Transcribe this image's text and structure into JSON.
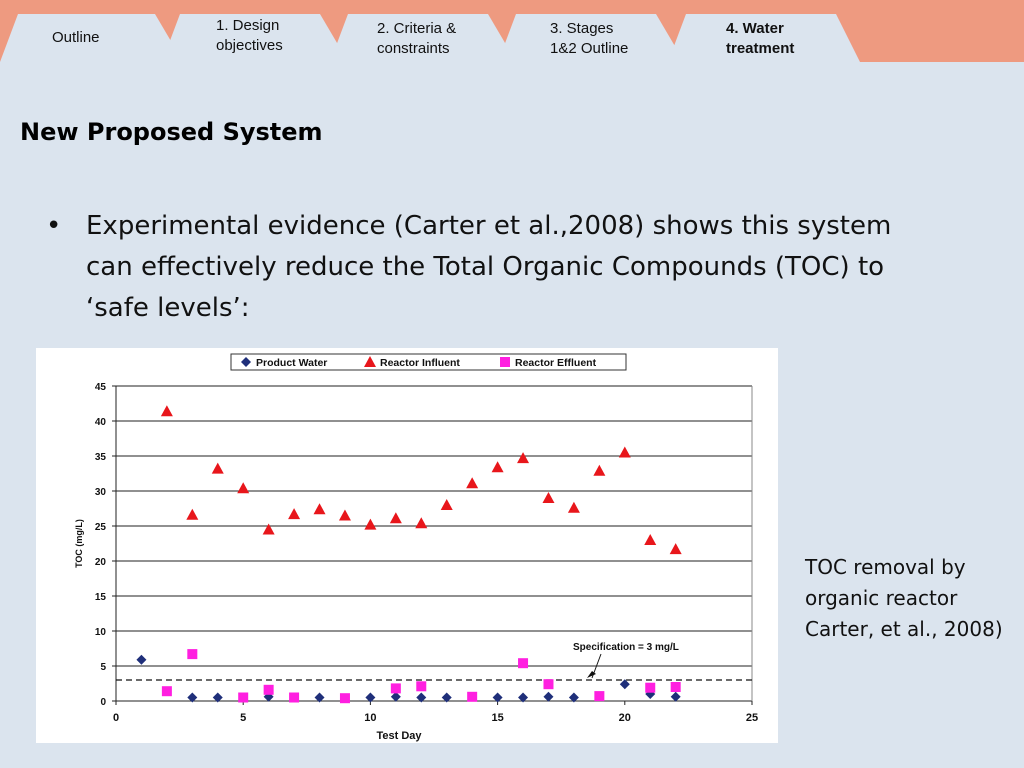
{
  "nav": {
    "tabs": [
      {
        "label": "Outline",
        "active": false
      },
      {
        "label": "1. Design\nobjectives",
        "active": false
      },
      {
        "label": "2. Criteria &\nconstraints",
        "active": false
      },
      {
        "label": "3. Stages\n1&2 Outline",
        "active": false
      },
      {
        "label": "4. Water\ntreatment",
        "active": true
      }
    ],
    "colors": {
      "bar": "#ee9a80",
      "tab": "#dbe4ee"
    }
  },
  "slide": {
    "title": "New Proposed System",
    "bullet": "Experimental evidence (Carter et al.,2008) shows this system can effectively reduce the Total Organic Compounds (TOC) to ‘safe levels’:",
    "caption": "TOC removal by organic reactor Carter, et al., 2008)"
  },
  "chart_data": {
    "type": "scatter",
    "xlabel": "Test Day",
    "ylabel": "TOC (mg/L)",
    "xlim": [
      0,
      25
    ],
    "ylim": [
      0,
      45
    ],
    "xticks": [
      0,
      5,
      10,
      15,
      20,
      25
    ],
    "yticks": [
      0,
      5,
      10,
      15,
      20,
      25,
      30,
      35,
      40,
      45
    ],
    "grid": "horizontal",
    "legend_position": "top",
    "series": [
      {
        "name": "Product Water",
        "marker": "diamond",
        "color": "#1f2f7a",
        "points": [
          [
            1,
            5.9
          ],
          [
            3,
            0.5
          ],
          [
            4,
            0.5
          ],
          [
            6,
            0.6
          ],
          [
            8,
            0.5
          ],
          [
            10,
            0.5
          ],
          [
            11,
            0.6
          ],
          [
            12,
            0.5
          ],
          [
            13,
            0.5
          ],
          [
            15,
            0.5
          ],
          [
            16,
            0.5
          ],
          [
            17,
            0.6
          ],
          [
            18,
            0.5
          ],
          [
            20,
            2.4
          ],
          [
            21,
            1.0
          ],
          [
            22,
            0.6
          ]
        ]
      },
      {
        "name": "Reactor Influent",
        "marker": "triangle",
        "color": "#e8161b",
        "points": [
          [
            2,
            41.4
          ],
          [
            3,
            26.6
          ],
          [
            4,
            33.2
          ],
          [
            5,
            30.4
          ],
          [
            6,
            24.5
          ],
          [
            7,
            26.7
          ],
          [
            8,
            27.4
          ],
          [
            9,
            26.5
          ],
          [
            10,
            25.2
          ],
          [
            11,
            26.1
          ],
          [
            12,
            25.4
          ],
          [
            13,
            28.0
          ],
          [
            14,
            31.1
          ],
          [
            15,
            33.4
          ],
          [
            16,
            34.7
          ],
          [
            17,
            29.0
          ],
          [
            18,
            27.6
          ],
          [
            19,
            32.9
          ],
          [
            20,
            35.5
          ],
          [
            21,
            23.0
          ],
          [
            22,
            21.7
          ]
        ]
      },
      {
        "name": "Reactor Effluent",
        "marker": "square",
        "color": "#ff1fe0",
        "points": [
          [
            2,
            1.4
          ],
          [
            3,
            6.7
          ],
          [
            5,
            0.5
          ],
          [
            6,
            1.6
          ],
          [
            7,
            0.5
          ],
          [
            9,
            0.4
          ],
          [
            11,
            1.8
          ],
          [
            12,
            2.1
          ],
          [
            14,
            0.6
          ],
          [
            16,
            5.4
          ],
          [
            17,
            2.4
          ],
          [
            19,
            0.7
          ],
          [
            21,
            1.9
          ],
          [
            22,
            2.0
          ]
        ]
      }
    ],
    "reference_line": {
      "y": 3,
      "style": "dashed",
      "label": "Specification = 3 mg/L"
    }
  }
}
